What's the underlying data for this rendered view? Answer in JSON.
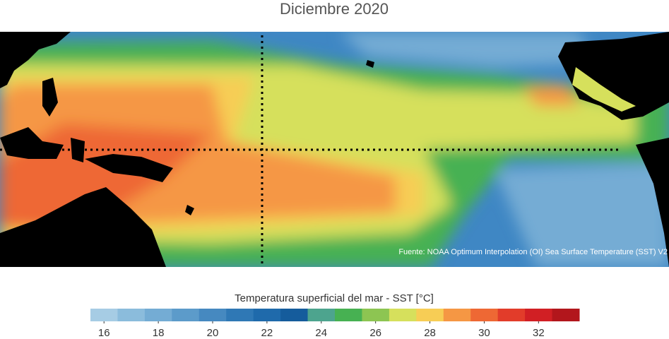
{
  "title": "Diciembre 2020",
  "source": "Fuente: NOAA Optimum Interpolation (OI) Sea Surface Temperature (SST) V2",
  "colorbar": {
    "label": "Temperatura superficial del mar - SST  [°C]",
    "vlim": [
      15.5,
      33.5
    ],
    "ticks": [
      16,
      18,
      20,
      22,
      24,
      26,
      28,
      30,
      32
    ],
    "colors": [
      "#a6cce4",
      "#8bbcdc",
      "#74acd4",
      "#5c9bca",
      "#4689c0",
      "#2f78b5",
      "#1f6aab",
      "#155c9c",
      "#4da48e",
      "#47b152",
      "#8dc552",
      "#d6e05c",
      "#f7cd55",
      "#f59744",
      "#ee6834",
      "#e23c2a",
      "#d11f24",
      "#b2161c"
    ]
  }
}
